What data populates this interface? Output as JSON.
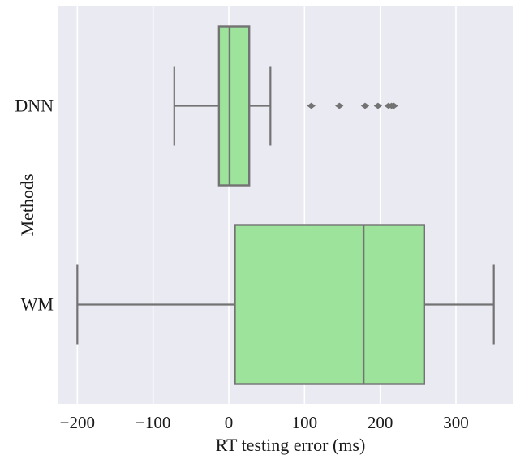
{
  "chart_data": {
    "type": "boxplot",
    "orientation": "horizontal",
    "xlabel": "RT testing error (ms)",
    "ylabel": "Methods",
    "xlim": [
      -225,
      375
    ],
    "xticks": [
      -200,
      -100,
      0,
      100,
      200,
      300
    ],
    "xtick_labels": [
      "−200",
      "−100",
      "0",
      "100",
      "200",
      "300"
    ],
    "grid": true,
    "background_color": "#eaeaf2",
    "box_color": "#9de39b",
    "line_color": "#737373",
    "categories": [
      "DNN",
      "WM"
    ],
    "boxes": [
      {
        "label": "DNN",
        "whislo": -72,
        "q1": -13,
        "med": 1,
        "q3": 27,
        "whishi": 55,
        "fliers": [
          109,
          146,
          180,
          197,
          211,
          215,
          218
        ]
      },
      {
        "label": "WM",
        "whislo": -200,
        "q1": 8,
        "med": 178,
        "q3": 258,
        "whishi": 350,
        "fliers": []
      }
    ]
  }
}
